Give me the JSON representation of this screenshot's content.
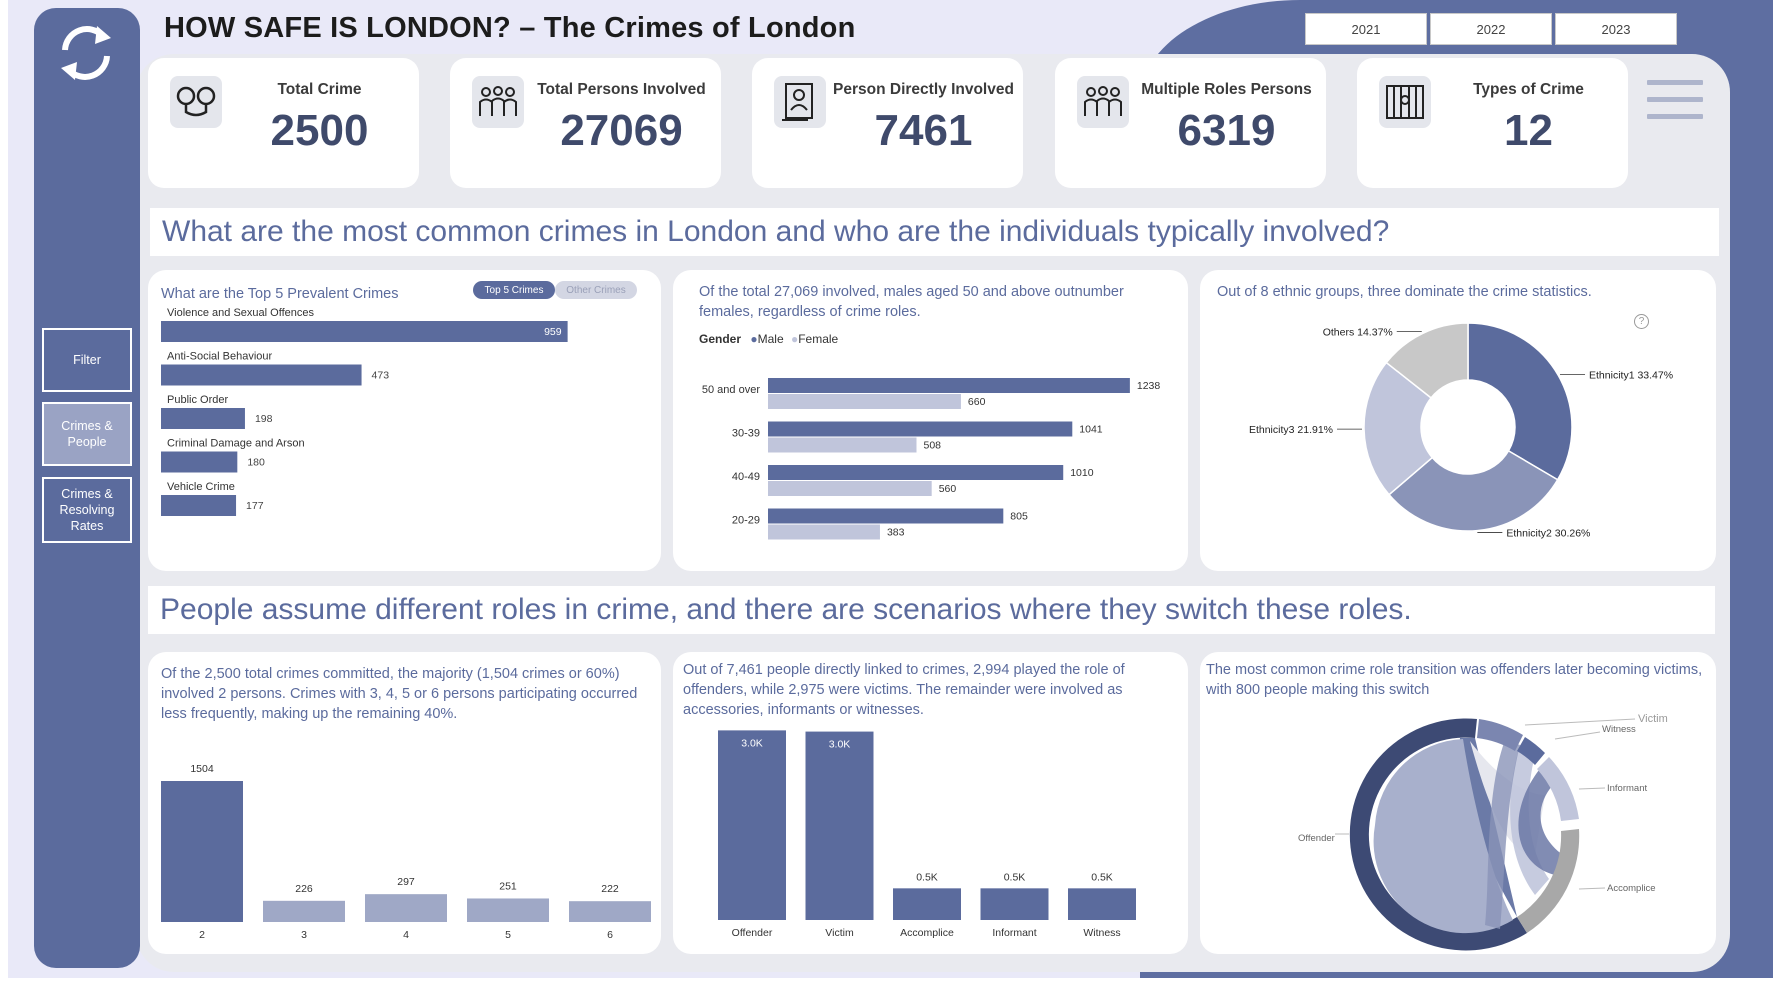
{
  "title": "HOW SAFE IS LONDON? – The Crimes of London",
  "years": [
    "2021",
    "2022",
    "2023"
  ],
  "nav": {
    "filter": "Filter",
    "crimes_people": "Crimes & People",
    "crimes_resolving": "Crimes & Resolving Rates"
  },
  "kpis": [
    {
      "label": "Total Crime",
      "value": "2500",
      "icon": "handcuffs-icon"
    },
    {
      "label": "Total Persons Involved",
      "value": "27069",
      "icon": "group-icon"
    },
    {
      "label": "Person Directly Involved",
      "value": "7461",
      "icon": "person-id-icon"
    },
    {
      "label": "Multiple Roles Persons",
      "value": "6319",
      "icon": "group-icon"
    },
    {
      "label": "Types of Crime",
      "value": "12",
      "icon": "prison-icon"
    }
  ],
  "banners": {
    "section1": "What are the most common crimes in London and who are the individuals typically involved?",
    "section2": "People assume different roles in crime, and there are scenarios where they switch these roles."
  },
  "colors": {
    "primary": "#5b6b9d",
    "secondary": "#c0c5db",
    "mid": "#8a94b8",
    "light_bar": "#9fa8c6",
    "grey": "#c8c8c8",
    "dark": "#3f4a6b"
  },
  "top_crimes": {
    "title": "What are the Top 5 Prevalent Crimes",
    "toggle_active": "Top 5 Crimes",
    "toggle_inactive": "Other Crimes"
  },
  "gender_chart": {
    "title": "Of the total 27,069 involved, males aged 50 and above outnumber females, regardless of crime roles.",
    "legend_title": "Gender",
    "legend": [
      "Male",
      "Female"
    ]
  },
  "ethnic_chart": {
    "title": "Out of 8 ethnic groups, three dominate the crime statistics."
  },
  "persons_chart": {
    "title": "Of the 2,500 total crimes committed, the majority (1,504 crimes or 60%) involved 2 persons. Crimes with 3, 4, 5 or 6 persons participating occurred less frequently, making up the remaining 40%."
  },
  "roles_chart": {
    "title": "Out of 7,461 people directly linked to crimes, 2,994 played the role of offenders, while 2,975 were victims. The remainder were involved as accessories, informants or witnesses."
  },
  "transition_chart": {
    "title": "The most common crime role transition was offenders later becoming victims, with 800 people making this switch",
    "labels": [
      "Victim",
      "Witness",
      "Informant",
      "Offender",
      "Accomplice"
    ]
  },
  "chart_data": [
    {
      "type": "bar",
      "orientation": "horizontal",
      "title": "What are the Top 5 Prevalent Crimes",
      "categories": [
        "Violence and Sexual Offences",
        "Anti-Social Behaviour",
        "Public Order",
        "Criminal Damage and Arson",
        "Vehicle Crime"
      ],
      "values": [
        959,
        473,
        198,
        180,
        177
      ],
      "xlim": [
        0,
        1000
      ]
    },
    {
      "type": "bar",
      "orientation": "horizontal",
      "title": "Of the total 27,069 involved, males aged 50 and above outnumber females, regardless of crime roles.",
      "categories": [
        "50 and over",
        "30-39",
        "40-49",
        "20-29"
      ],
      "series": [
        {
          "name": "Male",
          "values": [
            1238,
            1041,
            1010,
            805
          ]
        },
        {
          "name": "Female",
          "values": [
            660,
            508,
            560,
            383
          ]
        }
      ],
      "xlim": [
        0,
        1300
      ],
      "legend": "top-left"
    },
    {
      "type": "pie",
      "title": "Out of 8 ethnic groups, three dominate the crime statistics.",
      "donut": true,
      "labels": [
        "Ethnicity1",
        "Ethnicity2",
        "Ethnicity3",
        "Others"
      ],
      "values": [
        33.47,
        30.26,
        21.91,
        14.37
      ],
      "value_labels": [
        "Ethnicity1 33.47%",
        "Ethnicity2 30.26%",
        "Ethnicity3 21.91%",
        "Others 14.37%"
      ]
    },
    {
      "type": "bar",
      "title": "Of the 2,500 total crimes committed, the majority (1,504 crimes or 60%) involved 2 persons.",
      "categories": [
        "2",
        "3",
        "4",
        "5",
        "6"
      ],
      "values": [
        1504,
        226,
        297,
        251,
        222
      ],
      "ylim": [
        0,
        1600
      ]
    },
    {
      "type": "bar",
      "title": "Out of 7,461 people directly linked to crimes, 2,994 played the role of offenders, while 2,975 were victims.",
      "categories": [
        "Offender",
        "Victim",
        "Accomplice",
        "Informant",
        "Witness"
      ],
      "values": [
        2994,
        2975,
        500,
        500,
        500
      ],
      "data_labels": [
        "3.0K",
        "3.0K",
        "0.5K",
        "0.5K",
        "0.5K"
      ],
      "ylim": [
        0,
        3000
      ]
    }
  ]
}
